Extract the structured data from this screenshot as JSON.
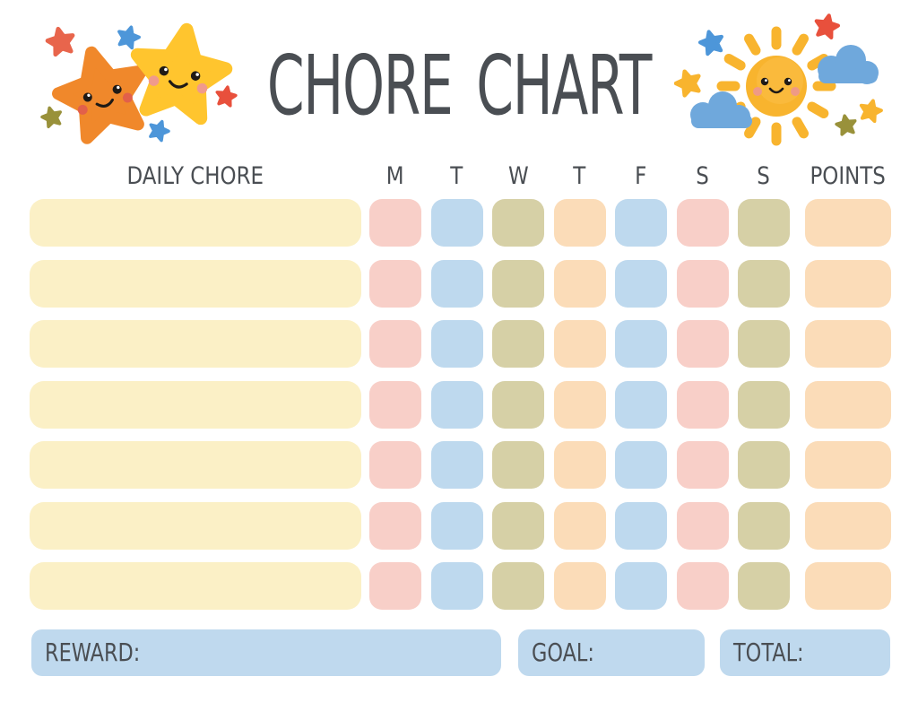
{
  "title": "CHORE CHART",
  "table": {
    "chore_header": "DAILY CHORE",
    "day_headers": [
      "M",
      "T",
      "W",
      "T",
      "F",
      "S",
      "S"
    ],
    "points_header": "POINTS",
    "rows_count": 7,
    "day_pattern": [
      "pink",
      "blue",
      "olive",
      "peach",
      "blue",
      "pink",
      "olive"
    ],
    "chore_cell_color_name": "cream",
    "points_cell_color_name": "peach"
  },
  "footer": {
    "reward_label": "REWARD:",
    "goal_label": "GOAL:",
    "total_label": "TOTAL:"
  },
  "colors": {
    "text": "#4a4e53",
    "cream": "#fbf0c6",
    "pink": "#f8cfc8",
    "blue": "#bed9ee",
    "olive": "#d6d0a6",
    "peach": "#fbdcb8",
    "footer_blue": "#bfd9ee",
    "star_orange": "#f0882b",
    "star_yellow": "#ffc52e",
    "sun_yellow": "#f8b42e",
    "cloud_blue": "#6fa8dc",
    "accent_red": "#e8503c",
    "accent_blue": "#4d96d9",
    "accent_olive": "#99913a"
  },
  "decorations": {
    "left_icons": [
      "orange-star-icon",
      "yellow-star-icon",
      "red-star-icon",
      "blue-star-icon",
      "olive-star-icon"
    ],
    "right_icons": [
      "sun-icon",
      "cloud-icon",
      "cloud-icon",
      "blue-star-icon",
      "red-star-icon",
      "yellow-star-icon",
      "olive-star-icon"
    ]
  }
}
